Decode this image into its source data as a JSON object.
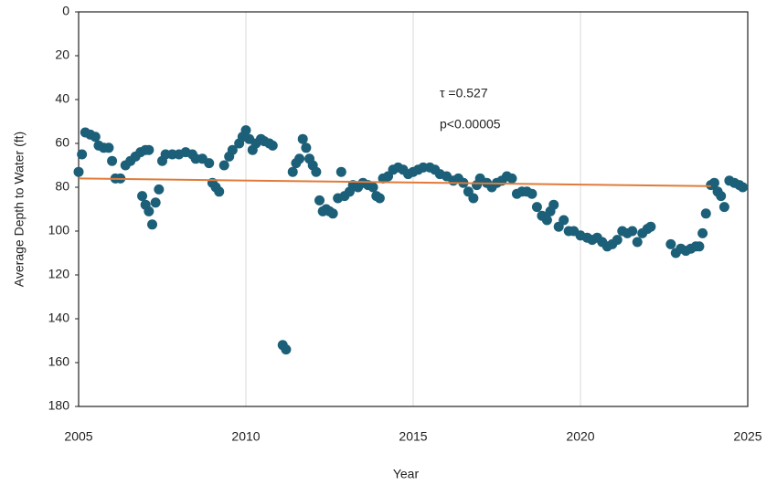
{
  "chart_data": {
    "type": "scatter",
    "x_label": "Year",
    "y_label": "Average Depth to Water (ft)",
    "xlim": [
      2005,
      2025
    ],
    "xticks": [
      2005,
      2010,
      2015,
      2020,
      2025
    ],
    "ylim": [
      180,
      0
    ],
    "yticks": [
      0,
      20,
      40,
      60,
      80,
      100,
      120,
      140,
      160,
      180
    ],
    "x_grid": true,
    "annotations": [
      "τ =0.527",
      "p<0.00005"
    ],
    "series": [
      {
        "color": "#1c5f78",
        "x": [
          2005.0,
          2005.1,
          2005.2,
          2005.35,
          2005.5,
          2005.6,
          2005.75,
          2005.9,
          2006.0,
          2006.1,
          2006.25,
          2006.4,
          2006.55,
          2006.7,
          2006.85,
          2007.0,
          2007.1,
          2006.9,
          2007.0,
          2007.1,
          2007.2,
          2007.3,
          2007.4,
          2007.5,
          2007.6,
          2007.8,
          2008.0,
          2008.2,
          2008.4,
          2008.5,
          2008.7,
          2008.9,
          2009.0,
          2009.1,
          2009.2,
          2009.35,
          2009.5,
          2009.6,
          2009.8,
          2009.9,
          2010.0,
          2010.1,
          2010.2,
          2010.3,
          2010.45,
          2010.55,
          2010.7,
          2010.8,
          2011.1,
          2011.2,
          2011.4,
          2011.5,
          2011.6,
          2011.7,
          2011.8,
          2011.9,
          2012.0,
          2012.1,
          2012.2,
          2012.3,
          2012.4,
          2012.5,
          2012.6,
          2012.75,
          2012.85,
          2012.95,
          2013.1,
          2013.2,
          2013.35,
          2013.5,
          2013.65,
          2013.8,
          2013.9,
          2014.0,
          2014.1,
          2014.25,
          2014.4,
          2014.55,
          2014.7,
          2014.85,
          2015.0,
          2015.15,
          2015.3,
          2015.5,
          2015.65,
          2015.8,
          2016.0,
          2016.2,
          2016.35,
          2016.5,
          2016.65,
          2016.8,
          2016.9,
          2017.0,
          2017.2,
          2017.35,
          2017.5,
          2017.65,
          2017.8,
          2017.95,
          2018.1,
          2018.25,
          2018.4,
          2018.55,
          2018.7,
          2018.85,
          2019.0,
          2019.1,
          2019.2,
          2019.35,
          2019.5,
          2019.65,
          2019.8,
          2020.0,
          2020.2,
          2020.35,
          2020.5,
          2020.65,
          2020.8,
          2020.95,
          2021.1,
          2021.25,
          2021.4,
          2021.55,
          2021.7,
          2021.85,
          2022.0,
          2022.1,
          2022.7,
          2022.85,
          2023.0,
          2023.15,
          2023.3,
          2023.45,
          2023.55,
          2023.65,
          2023.75,
          2023.9,
          2024.0,
          2024.1,
          2024.2,
          2024.3,
          2024.45,
          2024.6,
          2024.75,
          2024.85
        ],
        "values": [
          73,
          65,
          55,
          56,
          57,
          61,
          62,
          62,
          68,
          76,
          76,
          70,
          68,
          66,
          64,
          63,
          63,
          84,
          88,
          91,
          97,
          87,
          81,
          68,
          65,
          65,
          65,
          64,
          65,
          67,
          67,
          69,
          78,
          80,
          82,
          70,
          66,
          63,
          60,
          57,
          54,
          58,
          63,
          60,
          58,
          59,
          60,
          61,
          152,
          154,
          73,
          69,
          67,
          58,
          62,
          67,
          70,
          73,
          86,
          91,
          90,
          91,
          92,
          85,
          73,
          84,
          82,
          79,
          80,
          78,
          79,
          80,
          84,
          85,
          76,
          75,
          72,
          71,
          72,
          74,
          73,
          72,
          71,
          71,
          72,
          74,
          75,
          77,
          76,
          78,
          82,
          85,
          79,
          76,
          78,
          80,
          78,
          77,
          75,
          76,
          83,
          82,
          82,
          83,
          89,
          93,
          95,
          91,
          88,
          98,
          95,
          100,
          100,
          102,
          103,
          104,
          103,
          105,
          107,
          106,
          104,
          100,
          101,
          100,
          105,
          101,
          99,
          98,
          106,
          110,
          108,
          109,
          108,
          107,
          107,
          101,
          92,
          79,
          78,
          82,
          84,
          89,
          77,
          78,
          79,
          80
        ]
      }
    ],
    "trend_line": {
      "color": "#e07b39",
      "x": [
        2005,
        2023.9
      ],
      "values": [
        76,
        79.5
      ]
    }
  }
}
